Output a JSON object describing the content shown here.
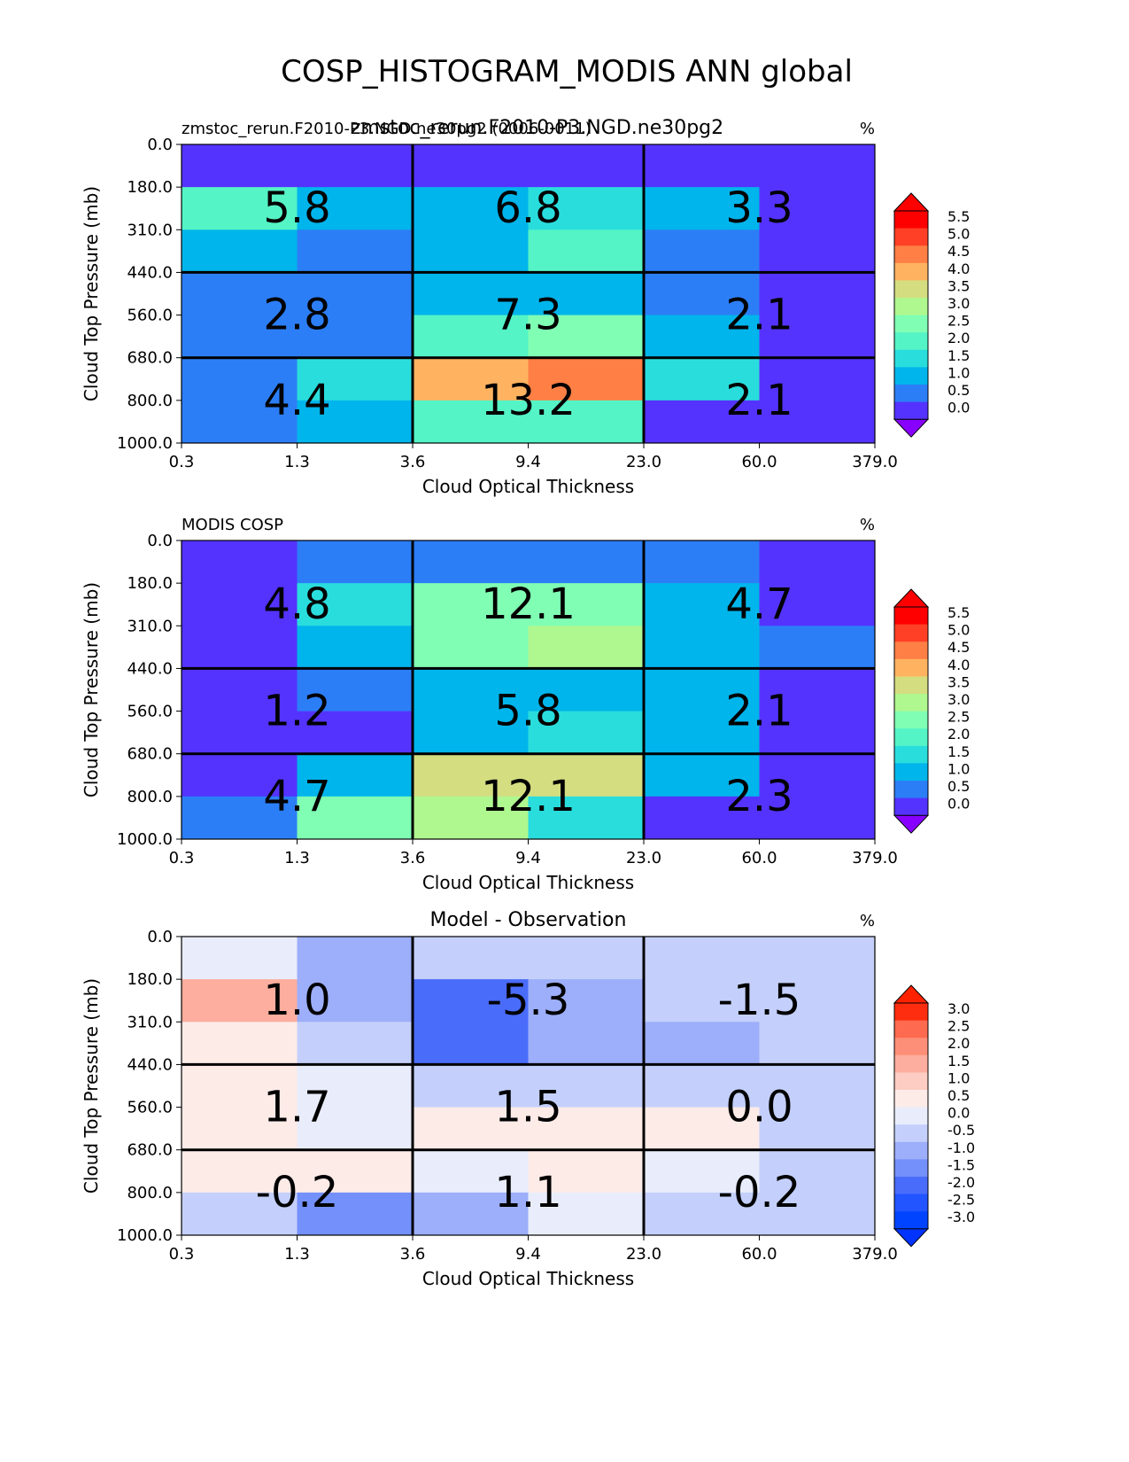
{
  "figure_title": "COSP_HISTOGRAM_MODIS ANN global",
  "chart_data": [
    {
      "type": "heatmap",
      "left_title": "zmstoc_rerun.F2010-P3.NGD.ne30pg2 (0006-0011)",
      "center_title": "zmstoc_rerun.F2010-P3.NGD.ne30pg2",
      "right_title": "%",
      "xlabel": "Cloud Optical Thickness",
      "ylabel": "Cloud Top Pressure (mb)",
      "x_edges": [
        "0.3",
        "1.3",
        "3.6",
        "9.4",
        "23.0",
        "60.0",
        "379.0"
      ],
      "y_edges": [
        "0.0",
        "180.0",
        "310.0",
        "440.0",
        "560.0",
        "680.0",
        "800.0",
        "1000.0"
      ],
      "values": [
        [
          0.1,
          0.1,
          0.1,
          0.1,
          0.1,
          0.1
        ],
        [
          2.1,
          1.3,
          1.3,
          1.9,
          1.3,
          0.2
        ],
        [
          1.3,
          0.8,
          1.3,
          2.3,
          0.8,
          0.2
        ],
        [
          0.8,
          0.8,
          1.3,
          1.3,
          0.8,
          0.2
        ],
        [
          0.8,
          0.8,
          2.1,
          2.8,
          1.3,
          0.2
        ],
        [
          0.8,
          1.9,
          4.3,
          4.8,
          1.9,
          0.2
        ],
        [
          0.8,
          1.3,
          2.1,
          2.1,
          0.2,
          0.2
        ]
      ],
      "block_totals": [
        [
          "5.8",
          "6.8",
          "3.3"
        ],
        [
          "2.8",
          "7.3",
          "2.1"
        ],
        [
          "4.4",
          "13.2",
          "2.1"
        ]
      ],
      "colorbar_ticks": [
        "5.5",
        "5.0",
        "4.5",
        "4.0",
        "3.5",
        "3.0",
        "2.5",
        "2.0",
        "1.5",
        "1.0",
        "0.5",
        "0.0"
      ],
      "cmap": "rainbow"
    },
    {
      "type": "heatmap",
      "left_title": "MODIS COSP",
      "center_title": "",
      "right_title": "%",
      "xlabel": "Cloud Optical Thickness",
      "ylabel": "Cloud Top Pressure (mb)",
      "x_edges": [
        "0.3",
        "1.3",
        "3.6",
        "9.4",
        "23.0",
        "60.0",
        "379.0"
      ],
      "y_edges": [
        "0.0",
        "180.0",
        "310.0",
        "440.0",
        "560.0",
        "680.0",
        "800.0",
        "1000.0"
      ],
      "values": [
        [
          0.3,
          0.8,
          0.8,
          0.8,
          0.8,
          0.3
        ],
        [
          0.3,
          1.8,
          2.7,
          2.7,
          1.3,
          0.3
        ],
        [
          0.3,
          1.3,
          2.7,
          3.3,
          1.3,
          0.8
        ],
        [
          0.3,
          0.8,
          1.3,
          1.3,
          1.3,
          0.3
        ],
        [
          0.3,
          0.3,
          1.3,
          1.8,
          1.3,
          0.3
        ],
        [
          0.3,
          1.3,
          3.8,
          3.8,
          1.3,
          0.3
        ],
        [
          0.8,
          2.8,
          3.3,
          1.8,
          0.3,
          0.3
        ]
      ],
      "block_totals": [
        [
          "4.8",
          "12.1",
          "4.7"
        ],
        [
          "1.2",
          "5.8",
          "2.1"
        ],
        [
          "4.7",
          "12.1",
          "2.3"
        ]
      ],
      "colorbar_ticks": [
        "5.5",
        "5.0",
        "4.5",
        "4.0",
        "3.5",
        "3.0",
        "2.5",
        "2.0",
        "1.5",
        "1.0",
        "0.5",
        "0.0"
      ],
      "cmap": "rainbow"
    },
    {
      "type": "heatmap",
      "left_title": "",
      "center_title": "Model - Observation",
      "right_title": "%",
      "xlabel": "Cloud Optical Thickness",
      "ylabel": "Cloud Top Pressure (mb)",
      "x_edges": [
        "0.3",
        "1.3",
        "3.6",
        "9.4",
        "23.0",
        "60.0",
        "379.0"
      ],
      "y_edges": [
        "0.0",
        "180.0",
        "310.0",
        "440.0",
        "560.0",
        "680.0",
        "800.0",
        "1000.0"
      ],
      "values": [
        [
          0.2,
          -0.7,
          -0.2,
          -0.2,
          -0.2,
          -0.2
        ],
        [
          1.7,
          -0.7,
          -1.7,
          -0.7,
          -0.2,
          -0.2
        ],
        [
          0.7,
          -0.2,
          -1.7,
          -0.7,
          -0.7,
          -0.2
        ],
        [
          0.7,
          0.2,
          -0.2,
          -0.2,
          -0.2,
          -0.2
        ],
        [
          0.7,
          0.2,
          0.7,
          0.7,
          0.7,
          -0.2
        ],
        [
          0.7,
          0.7,
          0.2,
          0.7,
          0.2,
          -0.2
        ],
        [
          -0.2,
          -1.2,
          -0.7,
          0.2,
          -0.2,
          -0.2
        ]
      ],
      "block_totals": [
        [
          "1.0",
          "-5.3",
          "-1.5"
        ],
        [
          "1.7",
          "1.5",
          "0.0"
        ],
        [
          "-0.2",
          "1.1",
          "-0.2"
        ]
      ],
      "colorbar_ticks": [
        "3.0",
        "2.5",
        "2.0",
        "1.5",
        "1.0",
        "0.5",
        "0.0",
        "-0.5",
        "-1.0",
        "-1.5",
        "-2.0",
        "-2.5",
        "-3.0"
      ],
      "cmap": "bwr"
    }
  ]
}
